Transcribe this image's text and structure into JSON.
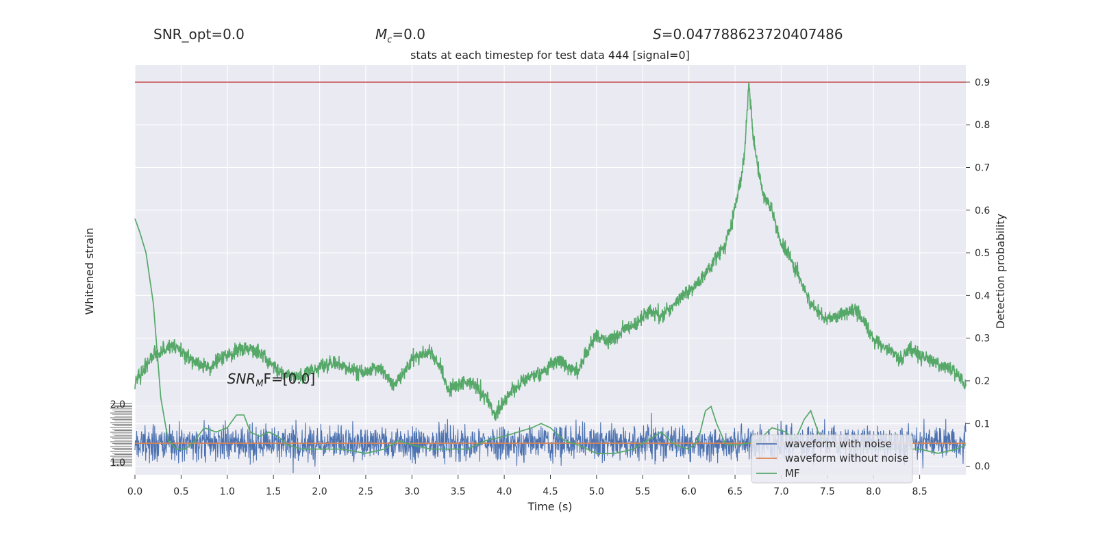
{
  "stats": {
    "snr_opt": "SNR_opt=0.0",
    "mc_symbol": "M",
    "mc_sub": "c",
    "mc_value": "=0.0",
    "s_symbol": "S",
    "s_value": "=0.047788623720407486"
  },
  "chart_data": {
    "type": "line",
    "title": "stats at each timestep for test data 444 [signal=0]",
    "xlabel": "Time (s)",
    "ylabel_left": "Whitened strain",
    "ylabel_right": "Detection probability",
    "xlim": [
      0,
      9
    ],
    "x_ticks": [
      "0.0",
      "0.5",
      "1.0",
      "1.5",
      "2.0",
      "2.5",
      "3.0",
      "3.5",
      "4.0",
      "4.5",
      "5.0",
      "5.5",
      "6.0",
      "6.5",
      "7.0",
      "7.5",
      "8.0",
      "8.5"
    ],
    "ylim_right": [
      -0.02,
      0.94
    ],
    "y_ticks_right": [
      "0.0",
      "0.1",
      "0.2",
      "0.3",
      "0.4",
      "0.5",
      "0.6",
      "0.7",
      "0.8",
      "0.9"
    ],
    "threshold": 0.9,
    "left_axis_ticks": [
      "2.0",
      "1.0"
    ],
    "annotation": {
      "prefix": "SNR",
      "sub": "M",
      "suffix": "F=[0.0]",
      "x": 1.0
    },
    "legend": {
      "placement": "bottom-right",
      "entries": [
        "waveform with noise",
        "waveform without noise",
        "MF"
      ]
    },
    "colors": {
      "noise": "#4c72b0",
      "clean": "#dd8452",
      "mf": "#55a868",
      "threshold": "#c44e52",
      "background": "#eaeaf2"
    },
    "series": [
      {
        "name": "Detection probability",
        "x": [
          0.0,
          0.1,
          0.2,
          0.3,
          0.4,
          0.5,
          0.6,
          0.7,
          0.8,
          0.9,
          1.0,
          1.1,
          1.2,
          1.3,
          1.4,
          1.5,
          1.6,
          1.7,
          1.8,
          1.9,
          2.0,
          2.1,
          2.2,
          2.3,
          2.4,
          2.5,
          2.6,
          2.7,
          2.8,
          2.9,
          3.0,
          3.1,
          3.2,
          3.3,
          3.4,
          3.5,
          3.6,
          3.7,
          3.8,
          3.9,
          4.0,
          4.1,
          4.2,
          4.3,
          4.4,
          4.5,
          4.6,
          4.7,
          4.8,
          4.9,
          5.0,
          5.1,
          5.2,
          5.3,
          5.4,
          5.5,
          5.6,
          5.7,
          5.8,
          5.9,
          6.0,
          6.1,
          6.2,
          6.3,
          6.4,
          6.5,
          6.6,
          6.65,
          6.7,
          6.8,
          6.9,
          7.0,
          7.1,
          7.2,
          7.3,
          7.4,
          7.5,
          7.6,
          7.7,
          7.8,
          7.9,
          8.0,
          8.1,
          8.2,
          8.3,
          8.4,
          8.5,
          8.6,
          8.7,
          8.8,
          8.9,
          9.0
        ],
        "values": [
          0.19,
          0.23,
          0.26,
          0.27,
          0.28,
          0.27,
          0.25,
          0.24,
          0.23,
          0.25,
          0.26,
          0.27,
          0.28,
          0.27,
          0.26,
          0.23,
          0.22,
          0.21,
          0.21,
          0.22,
          0.23,
          0.24,
          0.24,
          0.23,
          0.22,
          0.22,
          0.23,
          0.22,
          0.19,
          0.22,
          0.25,
          0.26,
          0.27,
          0.24,
          0.18,
          0.19,
          0.2,
          0.19,
          0.16,
          0.12,
          0.15,
          0.18,
          0.2,
          0.21,
          0.22,
          0.24,
          0.25,
          0.23,
          0.22,
          0.27,
          0.31,
          0.29,
          0.3,
          0.32,
          0.33,
          0.35,
          0.36,
          0.35,
          0.37,
          0.39,
          0.41,
          0.43,
          0.46,
          0.49,
          0.52,
          0.6,
          0.72,
          0.9,
          0.76,
          0.64,
          0.6,
          0.52,
          0.49,
          0.44,
          0.39,
          0.36,
          0.34,
          0.35,
          0.36,
          0.37,
          0.34,
          0.3,
          0.28,
          0.27,
          0.25,
          0.28,
          0.26,
          0.25,
          0.24,
          0.23,
          0.22,
          0.19
        ]
      },
      {
        "name": "MF",
        "x": [
          0.0,
          0.05,
          0.12,
          0.2,
          0.28,
          0.36,
          0.45,
          0.55,
          0.65,
          0.75,
          0.88,
          1.0,
          1.1,
          1.18,
          1.25,
          1.35,
          1.45,
          1.55,
          1.65,
          1.8,
          2.0,
          2.25,
          2.5,
          2.7,
          2.85,
          3.0,
          3.2,
          3.4,
          3.6,
          3.8,
          4.0,
          4.15,
          4.3,
          4.4,
          4.5,
          4.65,
          4.8,
          5.0,
          5.2,
          5.4,
          5.55,
          5.7,
          5.85,
          6.0,
          6.1,
          6.18,
          6.24,
          6.3,
          6.4,
          6.55,
          6.75,
          6.9,
          7.05,
          7.15,
          7.25,
          7.32,
          7.4,
          7.5,
          7.7,
          7.9,
          8.1,
          8.3,
          8.5,
          8.7,
          8.9,
          9.0
        ],
        "values": [
          0.58,
          0.55,
          0.5,
          0.38,
          0.16,
          0.06,
          0.04,
          0.04,
          0.06,
          0.09,
          0.08,
          0.09,
          0.12,
          0.12,
          0.08,
          0.07,
          0.08,
          0.07,
          0.05,
          0.04,
          0.04,
          0.04,
          0.03,
          0.04,
          0.06,
          0.05,
          0.04,
          0.04,
          0.04,
          0.06,
          0.07,
          0.08,
          0.09,
          0.1,
          0.09,
          0.06,
          0.05,
          0.03,
          0.03,
          0.04,
          0.06,
          0.08,
          0.05,
          0.04,
          0.06,
          0.13,
          0.14,
          0.1,
          0.05,
          0.05,
          0.06,
          0.09,
          0.08,
          0.06,
          0.11,
          0.13,
          0.08,
          0.05,
          0.04,
          0.04,
          0.04,
          0.04,
          0.04,
          0.03,
          0.04,
          0.05
        ]
      },
      {
        "name": "waveform with noise",
        "amplitude_std": 0.35,
        "offset": 0.0
      },
      {
        "name": "waveform without noise",
        "values_constant": 0.0
      }
    ]
  }
}
